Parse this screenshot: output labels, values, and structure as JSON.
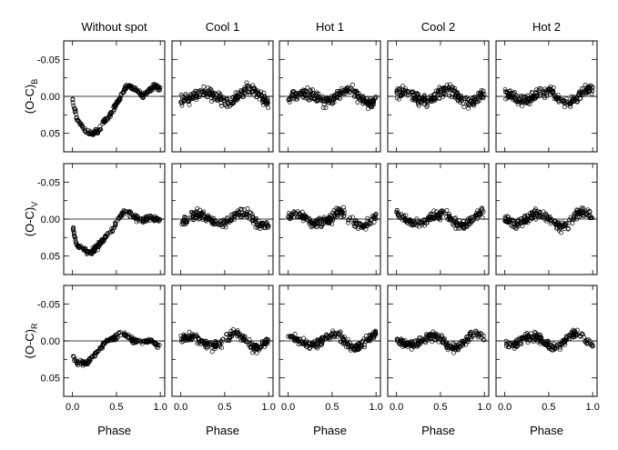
{
  "figure": {
    "columns": [
      "Without spot",
      "Cool 1",
      "Hot 1",
      "Cool 2",
      "Hot 2"
    ],
    "rows": [
      {
        "label_main": "(O-C)",
        "label_sub": "B"
      },
      {
        "label_main": "(O-C)",
        "label_sub": "V"
      },
      {
        "label_main": "(O-C)",
        "label_sub": "R"
      }
    ],
    "xlabel": "Phase",
    "x_ticks": [
      "0.0",
      "0.5",
      "1.0"
    ],
    "y_ticks": [
      "-0.05",
      "0.00",
      "0.05"
    ]
  },
  "chart_data": {
    "type": "scatter",
    "layout": "grid 3 rows x 5 columns",
    "x": {
      "label": "Phase",
      "range": [
        -0.1,
        1.05
      ],
      "ticks": [
        0.0,
        0.5,
        1.0
      ]
    },
    "y": {
      "range": [
        0.075,
        -0.075
      ],
      "inverted": true,
      "ticks": [
        -0.05,
        0.0,
        0.05
      ]
    },
    "reference_line": 0.0,
    "marker": "open circle",
    "approximate_trend": {
      "Without spot": {
        "phase": [
          0.0,
          0.05,
          0.1,
          0.15,
          0.2,
          0.25,
          0.3,
          0.35,
          0.4,
          0.45,
          0.5,
          0.55,
          0.6,
          0.65,
          0.7,
          0.75,
          0.8,
          0.85,
          0.9,
          0.95,
          1.0
        ],
        "B": [
          0.005,
          0.03,
          0.04,
          0.045,
          0.05,
          0.05,
          0.045,
          0.035,
          0.03,
          0.02,
          0.01,
          0.0,
          -0.01,
          -0.015,
          -0.01,
          -0.005,
          0.0,
          -0.005,
          -0.01,
          -0.015,
          -0.01
        ],
        "V": [
          0.01,
          0.035,
          0.04,
          0.042,
          0.045,
          0.042,
          0.035,
          0.028,
          0.022,
          0.015,
          0.005,
          -0.005,
          -0.01,
          -0.008,
          -0.003,
          0.0,
          0.002,
          0.0,
          -0.002,
          0.0,
          0.0
        ],
        "R": [
          0.02,
          0.03,
          0.03,
          0.03,
          0.025,
          0.02,
          0.012,
          0.005,
          0.0,
          -0.002,
          -0.005,
          -0.01,
          -0.008,
          -0.004,
          0.0,
          0.0,
          0.0,
          0.0,
          0.0,
          0.005,
          0.008
        ]
      },
      "spot_models": "residuals scattered about 0.00 within about ±0.03 for all passbands"
    }
  }
}
